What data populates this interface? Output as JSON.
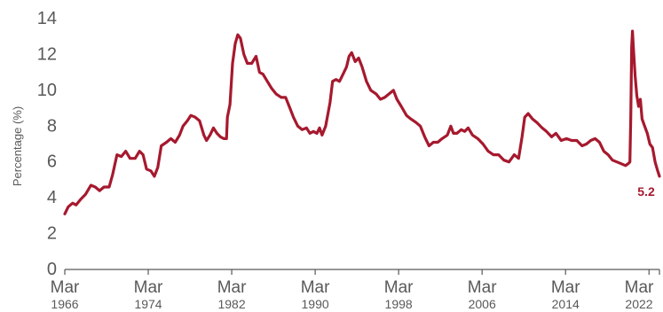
{
  "chart_data": {
    "type": "line",
    "title": "",
    "xlabel": "",
    "ylabel": "Percentage (%)",
    "ylim": [
      0,
      14
    ],
    "xlim": [
      "1966-03",
      "2023-03"
    ],
    "grid": false,
    "legend": "none",
    "y_ticks": [
      "0",
      "2",
      "4",
      "6",
      "8",
      "10",
      "12",
      "14"
    ],
    "x_ticks": [
      {
        "date": "1966-03",
        "line1": "Mar",
        "line2": "1966"
      },
      {
        "date": "1974-03",
        "line1": "Mar",
        "line2": "1974"
      },
      {
        "date": "1982-03",
        "line1": "Mar",
        "line2": "1982"
      },
      {
        "date": "1990-03",
        "line1": "Mar",
        "line2": "1990"
      },
      {
        "date": "1998-03",
        "line1": "Mar",
        "line2": "1998"
      },
      {
        "date": "2006-03",
        "line1": "Mar",
        "line2": "2006"
      },
      {
        "date": "2014-03",
        "line1": "Mar",
        "line2": "2014"
      },
      {
        "date": "2022-03",
        "line1": "Mar",
        "line2": "2022"
      }
    ],
    "end_label": "5.2",
    "series": [
      {
        "color": "#a6192e",
        "points": [
          [
            "1966-03",
            3.1
          ],
          [
            "1966-07",
            3.5
          ],
          [
            "1966-12",
            3.7
          ],
          [
            "1967-04",
            3.6
          ],
          [
            "1967-09",
            3.9
          ],
          [
            "1968-03",
            4.2
          ],
          [
            "1968-09",
            4.7
          ],
          [
            "1969-02",
            4.6
          ],
          [
            "1969-07",
            4.4
          ],
          [
            "1969-12",
            4.6
          ],
          [
            "1970-06",
            4.6
          ],
          [
            "1970-10",
            5.3
          ],
          [
            "1971-03",
            6.4
          ],
          [
            "1971-08",
            6.3
          ],
          [
            "1972-01",
            6.6
          ],
          [
            "1972-06",
            6.2
          ],
          [
            "1972-12",
            6.2
          ],
          [
            "1973-05",
            6.6
          ],
          [
            "1973-09",
            6.4
          ],
          [
            "1974-01",
            5.6
          ],
          [
            "1974-06",
            5.5
          ],
          [
            "1974-10",
            5.2
          ],
          [
            "1975-02",
            5.7
          ],
          [
            "1975-06",
            6.9
          ],
          [
            "1975-12",
            7.1
          ],
          [
            "1976-05",
            7.3
          ],
          [
            "1976-10",
            7.1
          ],
          [
            "1977-03",
            7.5
          ],
          [
            "1977-07",
            8.0
          ],
          [
            "1977-12",
            8.3
          ],
          [
            "1978-04",
            8.6
          ],
          [
            "1978-09",
            8.5
          ],
          [
            "1979-02",
            8.3
          ],
          [
            "1979-07",
            7.5
          ],
          [
            "1979-10",
            7.2
          ],
          [
            "1980-02",
            7.5
          ],
          [
            "1980-06",
            7.9
          ],
          [
            "1980-10",
            7.6
          ],
          [
            "1981-02",
            7.4
          ],
          [
            "1981-06",
            7.3
          ],
          [
            "1981-09",
            7.3
          ],
          [
            "1981-10",
            8.5
          ],
          [
            "1982-01",
            9.2
          ],
          [
            "1982-04",
            11.5
          ],
          [
            "1982-07",
            12.6
          ],
          [
            "1982-10",
            13.1
          ],
          [
            "1983-01",
            12.9
          ],
          [
            "1983-05",
            12.0
          ],
          [
            "1983-09",
            11.5
          ],
          [
            "1984-02",
            11.5
          ],
          [
            "1984-07",
            11.9
          ],
          [
            "1984-11",
            11.0
          ],
          [
            "1985-03",
            10.9
          ],
          [
            "1985-08",
            10.5
          ],
          [
            "1986-01",
            10.1
          ],
          [
            "1986-06",
            9.8
          ],
          [
            "1986-12",
            9.6
          ],
          [
            "1987-05",
            9.6
          ],
          [
            "1987-10",
            9.0
          ],
          [
            "1988-02",
            8.5
          ],
          [
            "1988-07",
            8.0
          ],
          [
            "1988-12",
            7.8
          ],
          [
            "1989-05",
            7.9
          ],
          [
            "1989-09",
            7.6
          ],
          [
            "1990-01",
            7.7
          ],
          [
            "1990-05",
            7.6
          ],
          [
            "1990-08",
            7.9
          ],
          [
            "1990-11",
            7.5
          ],
          [
            "1991-03",
            8.0
          ],
          [
            "1991-08",
            9.3
          ],
          [
            "1991-11",
            10.5
          ],
          [
            "1992-03",
            10.6
          ],
          [
            "1992-07",
            10.5
          ],
          [
            "1992-11",
            10.9
          ],
          [
            "1993-03",
            11.3
          ],
          [
            "1993-06",
            11.9
          ],
          [
            "1993-09",
            12.1
          ],
          [
            "1994-01",
            11.6
          ],
          [
            "1994-05",
            11.8
          ],
          [
            "1994-09",
            11.3
          ],
          [
            "1995-02",
            10.5
          ],
          [
            "1995-07",
            10.0
          ],
          [
            "1996-01",
            9.8
          ],
          [
            "1996-06",
            9.5
          ],
          [
            "1996-11",
            9.6
          ],
          [
            "1997-04",
            9.8
          ],
          [
            "1997-09",
            10.0
          ],
          [
            "1998-01",
            9.5
          ],
          [
            "1998-06",
            9.1
          ],
          [
            "1998-12",
            8.6
          ],
          [
            "1999-05",
            8.4
          ],
          [
            "1999-11",
            8.2
          ],
          [
            "2000-04",
            8.0
          ],
          [
            "2000-09",
            7.4
          ],
          [
            "2001-02",
            6.9
          ],
          [
            "2001-07",
            7.1
          ],
          [
            "2001-12",
            7.1
          ],
          [
            "2002-05",
            7.3
          ],
          [
            "2002-11",
            7.5
          ],
          [
            "2003-03",
            8.0
          ],
          [
            "2003-06",
            7.6
          ],
          [
            "2003-10",
            7.6
          ],
          [
            "2004-03",
            7.8
          ],
          [
            "2004-07",
            7.7
          ],
          [
            "2004-11",
            7.9
          ],
          [
            "2005-04",
            7.5
          ],
          [
            "2005-10",
            7.3
          ],
          [
            "2006-04",
            7.0
          ],
          [
            "2006-10",
            6.6
          ],
          [
            "2007-04",
            6.4
          ],
          [
            "2007-10",
            6.4
          ],
          [
            "2008-04",
            6.1
          ],
          [
            "2008-10",
            6.0
          ],
          [
            "2009-04",
            6.4
          ],
          [
            "2009-09",
            6.2
          ],
          [
            "2010-01",
            7.4
          ],
          [
            "2010-04",
            8.5
          ],
          [
            "2010-08",
            8.7
          ],
          [
            "2011-01",
            8.4
          ],
          [
            "2011-06",
            8.2
          ],
          [
            "2011-12",
            7.9
          ],
          [
            "2012-05",
            7.7
          ],
          [
            "2012-11",
            7.4
          ],
          [
            "2013-04",
            7.6
          ],
          [
            "2013-10",
            7.2
          ],
          [
            "2014-04",
            7.3
          ],
          [
            "2014-10",
            7.2
          ],
          [
            "2015-04",
            7.2
          ],
          [
            "2015-10",
            6.9
          ],
          [
            "2016-03",
            7.0
          ],
          [
            "2016-08",
            7.2
          ],
          [
            "2017-01",
            7.3
          ],
          [
            "2017-06",
            7.1
          ],
          [
            "2017-11",
            6.6
          ],
          [
            "2018-04",
            6.4
          ],
          [
            "2018-09",
            6.1
          ],
          [
            "2019-02",
            6.0
          ],
          [
            "2019-07",
            5.9
          ],
          [
            "2019-12",
            5.8
          ],
          [
            "2020-03",
            5.9
          ],
          [
            "2020-05",
            6.0
          ],
          [
            "2020-06",
            8.5
          ],
          [
            "2020-07",
            12.4
          ],
          [
            "2020-08",
            13.3
          ],
          [
            "2020-09",
            12.4
          ],
          [
            "2020-11",
            10.8
          ],
          [
            "2021-01",
            9.7
          ],
          [
            "2021-03",
            9.1
          ],
          [
            "2021-05",
            9.5
          ],
          [
            "2021-07",
            8.4
          ],
          [
            "2021-10",
            8.0
          ],
          [
            "2022-01",
            7.6
          ],
          [
            "2022-04",
            7.0
          ],
          [
            "2022-07",
            6.8
          ],
          [
            "2022-10",
            6.0
          ],
          [
            "2023-01",
            5.5
          ],
          [
            "2023-03",
            5.2
          ]
        ]
      }
    ]
  }
}
